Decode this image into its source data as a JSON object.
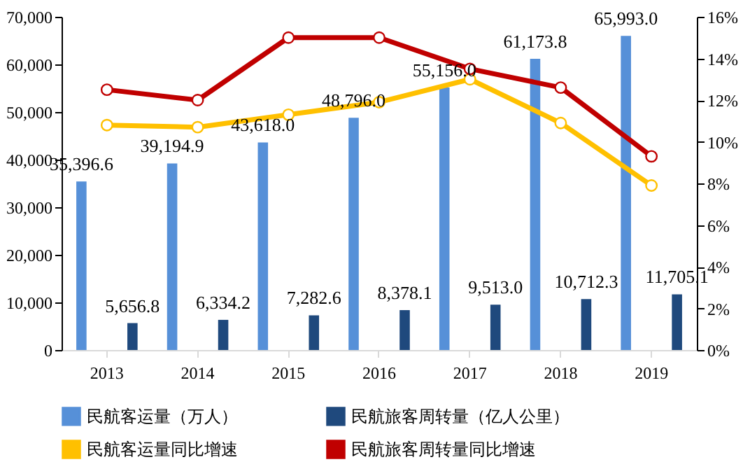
{
  "chart_data": {
    "type": "bar",
    "categories": [
      "2013",
      "2014",
      "2015",
      "2016",
      "2017",
      "2018",
      "2019"
    ],
    "series": [
      {
        "name": "民航客运量（万人）",
        "color": "#5690d8",
        "values": [
          35396.6,
          39194.9,
          43618.0,
          48796.0,
          55156.0,
          61173.8,
          65993.0
        ],
        "value_labels": [
          "35,396.6",
          "39,194.9",
          "43,618.0",
          "48,796.0",
          "55,156.0",
          "61,173.8",
          "65,993.0"
        ]
      },
      {
        "name": "民航旅客周转量（亿人公里）",
        "color": "#1f497d",
        "values": [
          5656.8,
          6334.2,
          7282.6,
          8378.1,
          9513.0,
          10712.3,
          11705.1
        ],
        "value_labels": [
          "5,656.8",
          "6,334.2",
          "7,282.6",
          "8,378.1",
          "9,513.0",
          "10,712.3",
          "11,705.1"
        ]
      },
      {
        "name": "民航客运量同比增速",
        "type": "line",
        "axis": "y2",
        "color": "#ffc000",
        "values": [
          10.8,
          10.7,
          11.3,
          11.9,
          13.0,
          10.9,
          7.9
        ]
      },
      {
        "name": "民航旅客周转量同比增速",
        "type": "line",
        "axis": "y2",
        "color": "#c00000",
        "values": [
          12.5,
          12.0,
          15.0,
          15.0,
          13.5,
          12.6,
          9.3
        ]
      }
    ],
    "ylim": [
      0,
      70000
    ],
    "yticks": [
      0,
      {
        "value": 10000,
        "label": "10,000"
      },
      {
        "value": 20000,
        "label": "20,000"
      },
      {
        "value": 30000,
        "label": "30,000"
      },
      {
        "value": 40000,
        "label": "40,000"
      },
      {
        "value": 50000,
        "label": "50,000"
      },
      {
        "value": 60000,
        "label": "60,000"
      },
      {
        "value": 70000,
        "label": "70,000"
      }
    ],
    "y2lim": [
      0,
      16
    ],
    "y2ticks": [
      {
        "value": 0,
        "label": "0%"
      },
      {
        "value": 2,
        "label": "2%"
      },
      {
        "value": 4,
        "label": "4%"
      },
      {
        "value": 6,
        "label": "6%"
      },
      {
        "value": 8,
        "label": "8%"
      },
      {
        "value": 10,
        "label": "10%"
      },
      {
        "value": 12,
        "label": "12%"
      },
      {
        "value": 14,
        "label": "14%"
      },
      {
        "value": 16,
        "label": "16%"
      }
    ],
    "grid": false,
    "legend": "bottom",
    "marker": "circle",
    "line_style": "solid"
  }
}
